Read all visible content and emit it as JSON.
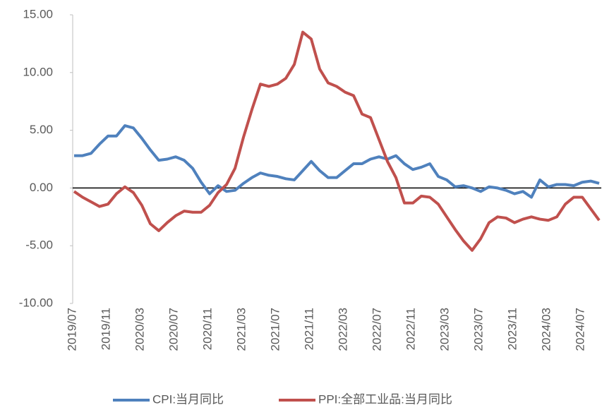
{
  "chart_data": {
    "type": "line",
    "categories": [
      "2019/07",
      null,
      null,
      null,
      "2019/11",
      null,
      null,
      null,
      "2020/03",
      null,
      null,
      null,
      "2020/07",
      null,
      null,
      null,
      "2020/11",
      null,
      null,
      null,
      "2021/03",
      null,
      null,
      null,
      "2021/07",
      null,
      null,
      null,
      "2021/11",
      null,
      null,
      null,
      "2022/03",
      null,
      null,
      null,
      "2022/07",
      null,
      null,
      null,
      "2022/11",
      null,
      null,
      null,
      "2023/03",
      null,
      null,
      null,
      "2023/07",
      null,
      null,
      null,
      "2023/11",
      null,
      null,
      null,
      "2024/03",
      null,
      null,
      null,
      "2024/07",
      null,
      null
    ],
    "series": [
      {
        "name": "CPI:当月同比",
        "color": "#4f81bd",
        "values": [
          2.8,
          2.8,
          3.0,
          3.8,
          4.5,
          4.5,
          5.4,
          5.2,
          4.3,
          3.3,
          2.4,
          2.5,
          2.7,
          2.4,
          1.7,
          0.5,
          -0.5,
          0.2,
          -0.3,
          -0.2,
          0.4,
          0.9,
          1.3,
          1.1,
          1.0,
          0.8,
          0.7,
          1.5,
          2.3,
          1.5,
          0.9,
          0.9,
          1.5,
          2.1,
          2.1,
          2.5,
          2.7,
          2.5,
          2.8,
          2.1,
          1.6,
          1.8,
          2.1,
          1.0,
          0.7,
          0.1,
          0.2,
          0.0,
          -0.3,
          0.1,
          0.0,
          -0.2,
          -0.5,
          -0.3,
          -0.8,
          0.7,
          0.1,
          0.3,
          0.3,
          0.2,
          0.5,
          0.6,
          0.4
        ]
      },
      {
        "name": "PPI:全部工业品:当月同比",
        "color": "#c0504d",
        "values": [
          -0.3,
          -0.8,
          -1.2,
          -1.6,
          -1.4,
          -0.5,
          0.1,
          -0.4,
          -1.5,
          -3.1,
          -3.7,
          -3.0,
          -2.4,
          -2.0,
          -2.1,
          -2.1,
          -1.5,
          -0.4,
          0.3,
          1.7,
          4.4,
          6.8,
          9.0,
          8.8,
          9.0,
          9.5,
          10.7,
          13.5,
          12.9,
          10.3,
          9.1,
          8.8,
          8.3,
          8.0,
          6.4,
          6.1,
          4.2,
          2.3,
          0.9,
          -1.3,
          -1.3,
          -0.7,
          -0.8,
          -1.4,
          -2.5,
          -3.6,
          -4.6,
          -5.4,
          -4.4,
          -3.0,
          -2.5,
          -2.6,
          -3.0,
          -2.7,
          -2.5,
          -2.7,
          -2.8,
          -2.5,
          -1.4,
          -0.8,
          -0.8,
          -1.8,
          -2.8
        ]
      }
    ],
    "ylim": [
      -10,
      15
    ],
    "yticks": [
      {
        "value": -10,
        "label": "-10.00"
      },
      {
        "value": -5,
        "label": "-5.00"
      },
      {
        "value": 0,
        "label": "0.00"
      },
      {
        "value": 5,
        "label": "5.00"
      },
      {
        "value": 10,
        "label": "10.00"
      },
      {
        "value": 15,
        "label": "15.00"
      }
    ],
    "grid": false,
    "legend": "bottom"
  }
}
